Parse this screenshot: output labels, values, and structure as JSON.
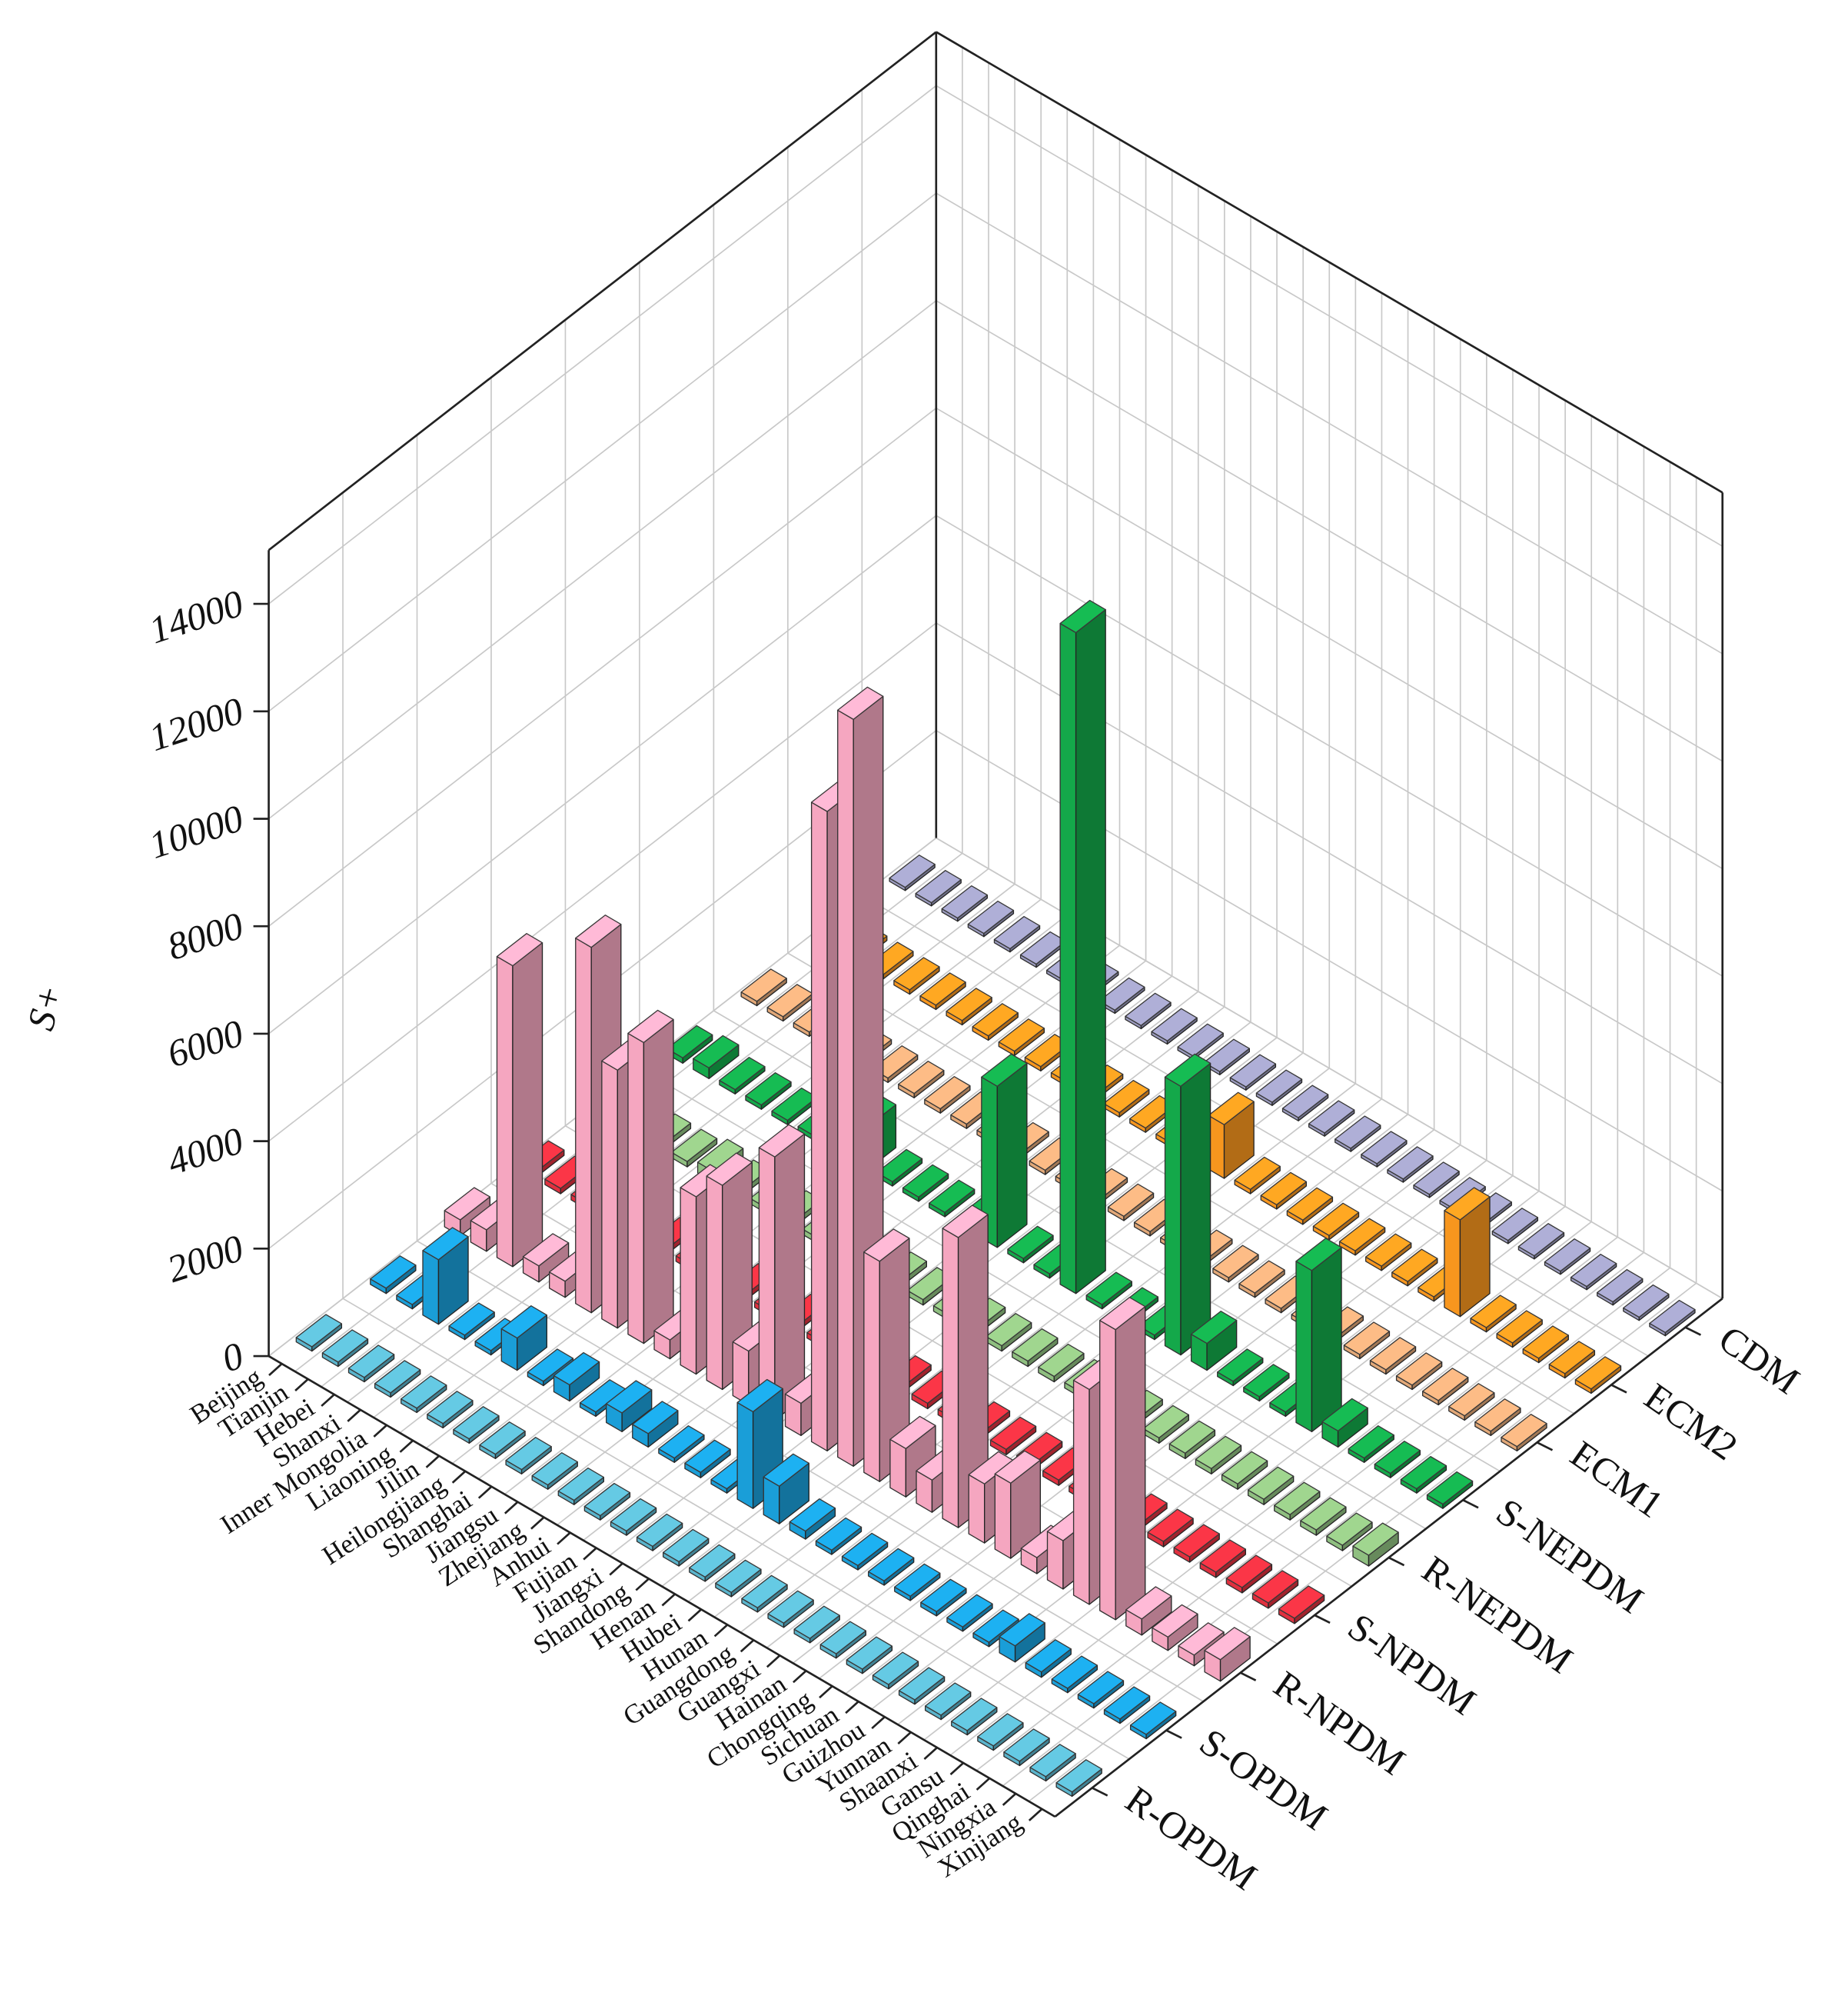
{
  "chart_data": {
    "type": "bar3d",
    "y_label": "S+",
    "categories": [
      "Beijing",
      "Tianjin",
      "Hebei",
      "Shanxi",
      "Inner Mongolia",
      "Liaoning",
      "Jilin",
      "Heilongjiang",
      "Shanghai",
      "Jiangsu",
      "Zhejiang",
      "Anhui",
      "Fujian",
      "Jiangxi",
      "Shandong",
      "Henan",
      "Hubei",
      "Hunan",
      "Guangdong",
      "Guangxi",
      "Hainan",
      "Chongqing",
      "Sichuan",
      "Guizhou",
      "Yunnan",
      "Shaanxi",
      "Gansu",
      "Qinghai",
      "Ningxia",
      "Xinjiang"
    ],
    "ylim": [
      0,
      15000
    ],
    "yticks": [
      0,
      2000,
      4000,
      6000,
      8000,
      10000,
      12000,
      14000
    ],
    "grid": true,
    "series": [
      {
        "name": "R-OPDM",
        "color": "#5ab4cc",
        "values": [
          80,
          80,
          80,
          80,
          80,
          80,
          80,
          80,
          80,
          80,
          80,
          80,
          80,
          80,
          80,
          80,
          80,
          80,
          80,
          80,
          80,
          80,
          80,
          80,
          80,
          80,
          80,
          80,
          80,
          80
        ]
      },
      {
        "name": "S-OPDM",
        "color": "#1a9ed8",
        "values": [
          100,
          80,
          1200,
          80,
          80,
          600,
          80,
          300,
          80,
          350,
          250,
          80,
          100,
          80,
          1800,
          700,
          150,
          80,
          80,
          80,
          80,
          80,
          80,
          80,
          300,
          100,
          80,
          80,
          80,
          80
        ]
      },
      {
        "name": "R-NPDM",
        "color": "#f5a6c0",
        "values": [
          300,
          400,
          5600,
          300,
          300,
          6800,
          4800,
          5600,
          350,
          3300,
          3800,
          1000,
          4900,
          600,
          11900,
          13900,
          4100,
          900,
          600,
          5400,
          1100,
          1400,
          300,
          900,
          4000,
          5400,
          300,
          250,
          200,
          400
        ]
      },
      {
        "name": "S-NPDM",
        "color": "#e0303f",
        "values": [
          100,
          100,
          100,
          100,
          100,
          100,
          100,
          100,
          100,
          100,
          100,
          100,
          100,
          100,
          100,
          100,
          100,
          100,
          100,
          100,
          100,
          100,
          100,
          100,
          100,
          100,
          100,
          100,
          100,
          100
        ]
      },
      {
        "name": "R-NEPDM",
        "color": "#8fbf80",
        "values": [
          100,
          100,
          100,
          100,
          200,
          100,
          100,
          100,
          100,
          100,
          100,
          100,
          100,
          100,
          100,
          100,
          100,
          100,
          100,
          100,
          100,
          100,
          100,
          100,
          100,
          100,
          100,
          100,
          100,
          200
        ]
      },
      {
        "name": "S-NEPDM",
        "color": "#14a84a",
        "values": [
          100,
          200,
          80,
          80,
          80,
          80,
          80,
          800,
          80,
          80,
          80,
          80,
          3000,
          80,
          80,
          12300,
          80,
          80,
          80,
          5000,
          500,
          80,
          80,
          80,
          3000,
          300,
          80,
          80,
          80,
          80
        ]
      },
      {
        "name": "ECM1",
        "color": "#e2a878",
        "values": [
          80,
          80,
          80,
          80,
          80,
          80,
          80,
          80,
          80,
          80,
          80,
          80,
          80,
          80,
          80,
          80,
          80,
          80,
          80,
          80,
          80,
          80,
          80,
          80,
          80,
          80,
          80,
          80,
          80,
          80
        ]
      },
      {
        "name": "ECM2",
        "color": "#f7961e",
        "values": [
          80,
          80,
          80,
          80,
          80,
          80,
          80,
          80,
          80,
          80,
          80,
          80,
          80,
          80,
          80,
          1000,
          80,
          80,
          80,
          80,
          80,
          80,
          80,
          80,
          1800,
          80,
          80,
          80,
          80,
          80
        ]
      },
      {
        "name": "CDM",
        "color": "#9c9cc0",
        "values": [
          60,
          60,
          60,
          60,
          60,
          60,
          60,
          60,
          60,
          60,
          60,
          60,
          60,
          60,
          60,
          60,
          60,
          60,
          60,
          60,
          60,
          60,
          60,
          60,
          60,
          60,
          60,
          60,
          60,
          60
        ]
      }
    ]
  }
}
